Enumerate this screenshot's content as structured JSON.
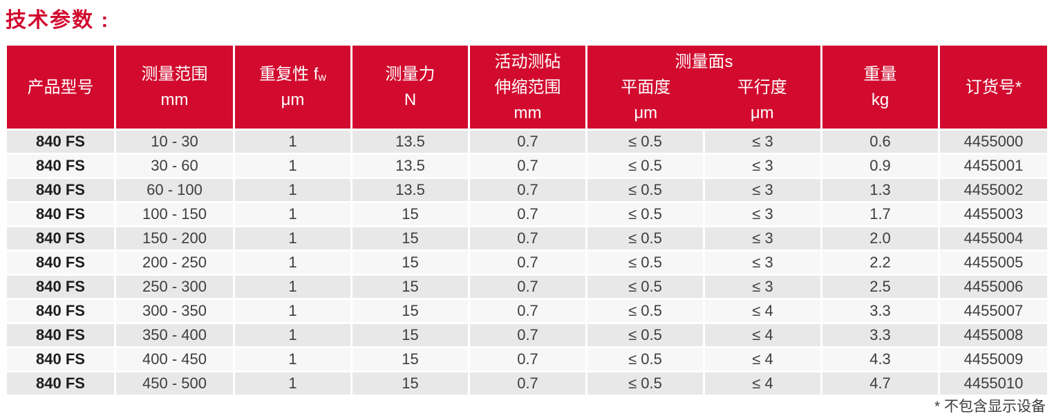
{
  "title": "技术参数 :",
  "colors": {
    "accent": "#d20a2e",
    "row_odd": "#e8e8e8",
    "row_even": "#f7f7f7"
  },
  "table": {
    "headers": {
      "product_model": "产品型号",
      "measuring_range": [
        "测量范围",
        "mm"
      ],
      "repeatability": {
        "prefix": "重复性 f",
        "sub": "w",
        "unit": "μm"
      },
      "measuring_force": [
        "测量力",
        "N"
      ],
      "anvil_travel": [
        "活动测砧",
        "伸缩范围",
        "mm"
      ],
      "faces": {
        "group": "测量面s",
        "flatness": "平面度",
        "flatness_unit": "μm",
        "parallelism": "平行度",
        "parallelism_unit": "μm"
      },
      "weight": [
        "重量",
        "kg"
      ],
      "order_number": "订货号*"
    },
    "rows": [
      [
        "840 FS",
        "10 - 30",
        "1",
        "13.5",
        "0.7",
        "≤ 0.5",
        "≤ 3",
        "0.6",
        "4455000"
      ],
      [
        "840 FS",
        "30 - 60",
        "1",
        "13.5",
        "0.7",
        "≤ 0.5",
        "≤ 3",
        "0.9",
        "4455001"
      ],
      [
        "840 FS",
        "60 - 100",
        "1",
        "13.5",
        "0.7",
        "≤ 0.5",
        "≤ 3",
        "1.3",
        "4455002"
      ],
      [
        "840 FS",
        "100 - 150",
        "1",
        "15",
        "0.7",
        "≤ 0.5",
        "≤ 3",
        "1.7",
        "4455003"
      ],
      [
        "840 FS",
        "150 - 200",
        "1",
        "15",
        "0.7",
        "≤ 0.5",
        "≤ 3",
        "2.0",
        "4455004"
      ],
      [
        "840 FS",
        "200 - 250",
        "1",
        "15",
        "0.7",
        "≤ 0.5",
        "≤ 3",
        "2.2",
        "4455005"
      ],
      [
        "840 FS",
        "250 - 300",
        "1",
        "15",
        "0.7",
        "≤ 0.5",
        "≤ 3",
        "2.5",
        "4455006"
      ],
      [
        "840 FS",
        "300 - 350",
        "1",
        "15",
        "0.7",
        "≤ 0.5",
        "≤ 4",
        "3.3",
        "4455007"
      ],
      [
        "840 FS",
        "350 - 400",
        "1",
        "15",
        "0.7",
        "≤ 0.5",
        "≤ 4",
        "3.3",
        "4455008"
      ],
      [
        "840 FS",
        "400 - 450",
        "1",
        "15",
        "0.7",
        "≤ 0.5",
        "≤ 4",
        "4.3",
        "4455009"
      ],
      [
        "840 FS",
        "450 - 500",
        "1",
        "15",
        "0.7",
        "≤ 0.5",
        "≤ 4",
        "4.7",
        "4455010"
      ]
    ]
  },
  "footnote": "* 不包含显示设备"
}
